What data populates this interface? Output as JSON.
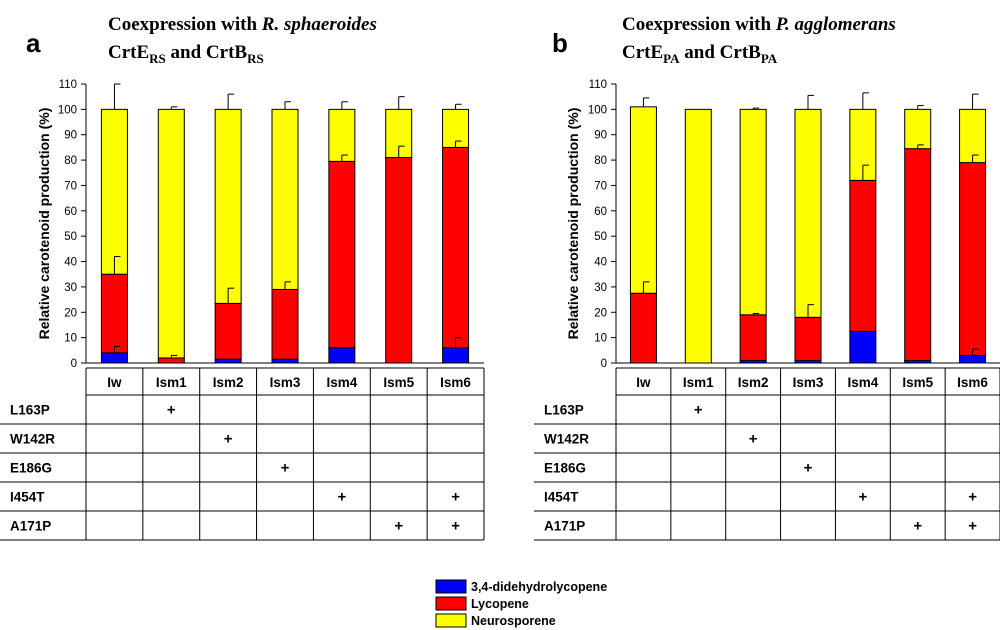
{
  "chart_data": [
    {
      "type": "bar",
      "stacked": true,
      "panel_label": "a",
      "title": {
        "line1_prefix": "Coexpression with ",
        "line1_italic": "R. sphaeroides",
        "line2": [
          {
            "t": "CrtE",
            "sub": "RS"
          },
          {
            "t": " and "
          },
          {
            "t": "CrtB",
            "sub": "RS"
          }
        ]
      },
      "ylabel": "Relative carotenoid production (%)",
      "ylim": [
        0,
        110
      ],
      "yticks": [
        0,
        10,
        20,
        30,
        40,
        50,
        60,
        70,
        80,
        90,
        100,
        110
      ],
      "categories": [
        "Iw",
        "Ism1",
        "Ism2",
        "Ism3",
        "Ism4",
        "Ism5",
        "Ism6"
      ],
      "series": [
        {
          "name": "3,4-didehydrolycopene",
          "color": "#0000ff",
          "values": [
            4,
            0,
            1.5,
            1.5,
            6,
            0,
            6
          ],
          "error": [
            2.5,
            0,
            0,
            0,
            0,
            0,
            4
          ]
        },
        {
          "name": "Lycopene",
          "color": "#ff0000",
          "values": [
            31,
            2,
            22,
            27.5,
            73.5,
            81,
            79
          ],
          "error": [
            7,
            1,
            6,
            3,
            2.5,
            4.5,
            2.5
          ]
        },
        {
          "name": "Neurosporene",
          "color": "#ffff00",
          "values": [
            65,
            98,
            76.5,
            71,
            20.5,
            19,
            15
          ],
          "error": [
            10,
            1,
            6,
            3,
            3,
            5,
            2
          ]
        }
      ],
      "table": {
        "rows": [
          "L163P",
          "W142R",
          "E186G",
          "I454T",
          "A171P"
        ],
        "marks": [
          [
            1
          ],
          [
            2
          ],
          [
            3
          ],
          [
            4,
            6
          ],
          [
            5,
            6
          ]
        ],
        "symbol": "+"
      }
    },
    {
      "type": "bar",
      "stacked": true,
      "panel_label": "b",
      "title": {
        "line1_prefix": "Coexpression with ",
        "line1_italic": "P. agglomerans",
        "line2": [
          {
            "t": "CrtE",
            "sub": "PA"
          },
          {
            "t": " and "
          },
          {
            "t": "CrtB",
            "sub": "PA"
          }
        ]
      },
      "ylabel": "Relative carotenoid production (%)",
      "ylim": [
        0,
        110
      ],
      "yticks": [
        0,
        10,
        20,
        30,
        40,
        50,
        60,
        70,
        80,
        90,
        100,
        110
      ],
      "categories": [
        "Iw",
        "Ism1",
        "Ism2",
        "Ism3",
        "Ism4",
        "Ism5",
        "Ism6"
      ],
      "series": [
        {
          "name": "3,4-didehydrolycopene",
          "color": "#0000ff",
          "values": [
            0,
            0,
            1,
            1,
            12.5,
            1,
            3
          ],
          "error": [
            0,
            0,
            0,
            0,
            0,
            0,
            2.5
          ]
        },
        {
          "name": "Lycopene",
          "color": "#ff0000",
          "values": [
            27.5,
            0,
            18,
            17,
            59.5,
            83.5,
            76
          ],
          "error": [
            4.5,
            0,
            0.5,
            5,
            6,
            1.5,
            3
          ]
        },
        {
          "name": "Neurosporene",
          "color": "#ffff00",
          "values": [
            73.5,
            100,
            81,
            82,
            28,
            15.5,
            21
          ],
          "error": [
            3.5,
            0,
            0.5,
            5.5,
            6.5,
            1.5,
            6
          ]
        }
      ],
      "table": {
        "rows": [
          "L163P",
          "W142R",
          "E186G",
          "I454T",
          "A171P"
        ],
        "marks": [
          [
            1
          ],
          [
            2
          ],
          [
            3
          ],
          [
            4,
            6
          ],
          [
            5,
            6
          ]
        ],
        "symbol": "+"
      }
    }
  ],
  "legend": {
    "position": "bottom-center",
    "items": [
      {
        "label": "3,4-didehydrolycopene",
        "color": "#0000ff"
      },
      {
        "label": "Lycopene",
        "color": "#ff0000"
      },
      {
        "label": "Neurosporene",
        "color": "#ffff00"
      }
    ]
  }
}
